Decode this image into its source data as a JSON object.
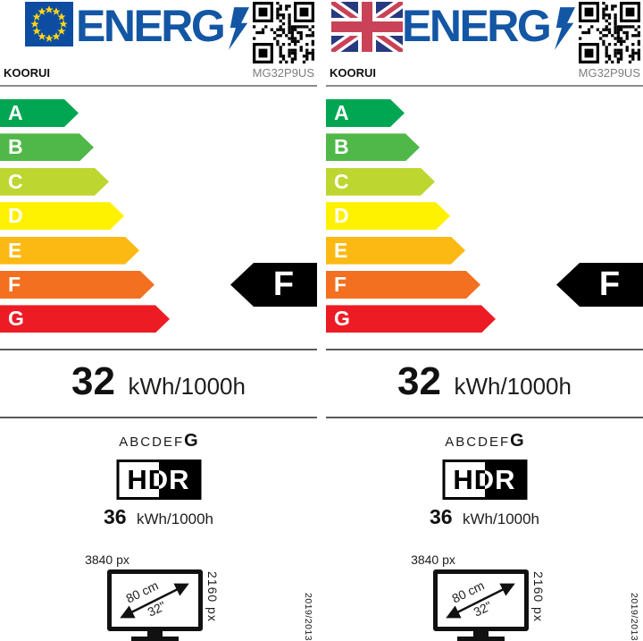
{
  "brand": "KOORUI",
  "model": "MG32P9US",
  "logo": {
    "text": "ENERG",
    "color": "#1356a4"
  },
  "energy_scale": [
    {
      "letter": "A",
      "color": "#00a651"
    },
    {
      "letter": "B",
      "color": "#50b848"
    },
    {
      "letter": "C",
      "color": "#bed630"
    },
    {
      "letter": "D",
      "color": "#fff200"
    },
    {
      "letter": "E",
      "color": "#fdb913"
    },
    {
      "letter": "F",
      "color": "#f37021"
    },
    {
      "letter": "G",
      "color": "#ed1c24"
    }
  ],
  "rating": {
    "letter": "F",
    "color": "#000000"
  },
  "sdr": {
    "value": "32",
    "unit": "kWh/1000h"
  },
  "scale_row": {
    "letters": "ABCDEF",
    "last": "G"
  },
  "hdr": {
    "logo": "HDR",
    "value": "36",
    "unit": "kWh/1000h"
  },
  "screen": {
    "h_res": "3840 px",
    "v_res": "2160 px",
    "diag_cm": "80 cm",
    "diag_in": "32\""
  },
  "regulation": "2019/2013",
  "labels": [
    {
      "region": "eu"
    },
    {
      "region": "uk"
    }
  ]
}
